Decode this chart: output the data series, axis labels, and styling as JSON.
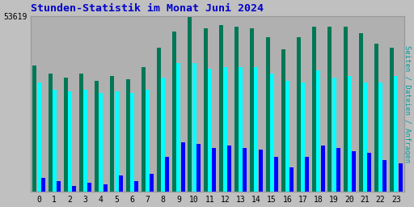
{
  "title": "Stunden-Statistik im Monat Juni 2024",
  "ylabel_right": "Seiten / Dateien / Anfragen",
  "ytick_label": "53619",
  "xlabel_categories": [
    "0",
    "1",
    "2",
    "3",
    "4",
    "5",
    "6",
    "7",
    "8",
    "9",
    "10",
    "11",
    "12",
    "13",
    "14",
    "15",
    "16",
    "17",
    "18",
    "19",
    "20",
    "21",
    "22",
    "23"
  ],
  "background_color": "#c0c0c0",
  "plot_bg_color": "#b0b0b0",
  "title_color": "#0000cc",
  "right_label_color": "#009999",
  "bar_color_green": "#007755",
  "bar_color_cyan": "#00ffff",
  "bar_color_blue": "#0000ff",
  "ylim_max": 1.0,
  "green_bars": [
    0.72,
    0.67,
    0.65,
    0.67,
    0.63,
    0.66,
    0.64,
    0.71,
    0.82,
    0.91,
    1.0,
    0.93,
    0.95,
    0.94,
    0.93,
    0.88,
    0.81,
    0.88,
    0.94,
    0.94,
    0.94,
    0.9,
    0.84,
    0.82
  ],
  "cyan_bars": [
    0.62,
    0.58,
    0.57,
    0.58,
    0.56,
    0.57,
    0.56,
    0.58,
    0.65,
    0.73,
    0.73,
    0.7,
    0.71,
    0.71,
    0.71,
    0.67,
    0.63,
    0.62,
    0.69,
    0.65,
    0.66,
    0.62,
    0.62,
    0.66
  ],
  "blue_bars": [
    0.08,
    0.06,
    0.03,
    0.05,
    0.04,
    0.09,
    0.06,
    0.1,
    0.2,
    0.28,
    0.27,
    0.25,
    0.26,
    0.25,
    0.24,
    0.2,
    0.14,
    0.2,
    0.26,
    0.25,
    0.23,
    0.22,
    0.18,
    0.16
  ]
}
